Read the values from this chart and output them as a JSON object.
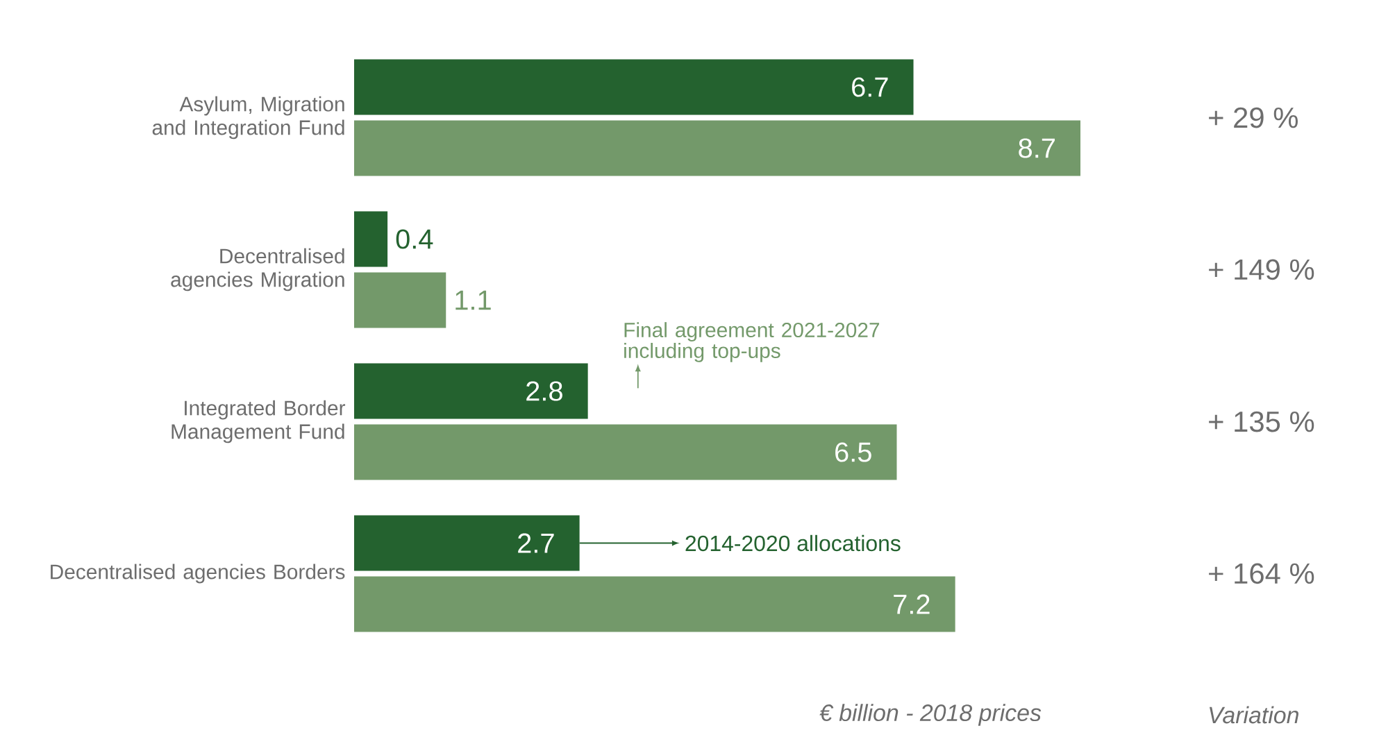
{
  "chart_data": {
    "type": "bar",
    "orientation": "horizontal",
    "data_labels": true,
    "categories": [
      "Asylum, Migration and Integration Fund",
      "Decentralised agencies Migration",
      "Integrated Border Management Fund",
      "Decentralised agencies Borders"
    ],
    "series": [
      {
        "name": "2014-2020 allocations",
        "color": "#24622f",
        "values": [
          6.7,
          0.4,
          2.8,
          2.7
        ]
      },
      {
        "name": "Final agreement 2021-2027 including top-ups",
        "color": "#73996a",
        "values": [
          8.7,
          1.1,
          6.5,
          7.2
        ]
      }
    ],
    "xlabel": "€ billion - 2018 prices",
    "annotations": [
      "+ 29 %",
      "+ 149 %",
      "+ 135 %",
      "+ 164 %",
      "Variation"
    ]
  }
}
